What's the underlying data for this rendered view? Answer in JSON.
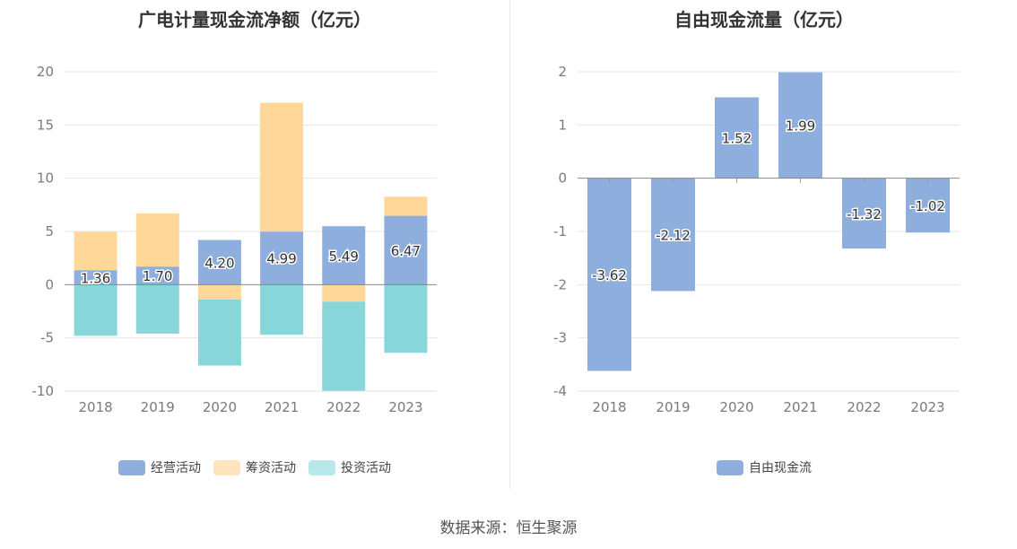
{
  "chart_data": [
    {
      "type": "bar",
      "stacked": true,
      "title": "广电计量现金流净额（亿元）",
      "categories": [
        "2018",
        "2019",
        "2020",
        "2021",
        "2022",
        "2023"
      ],
      "ylim": [
        -10,
        20
      ],
      "yticks": [
        20,
        15,
        10,
        5,
        0,
        -5,
        -10
      ],
      "series": [
        {
          "name": "经营活动",
          "color": "#8eaedd",
          "values": [
            1.36,
            1.7,
            4.2,
            4.99,
            5.49,
            6.47
          ],
          "labeled": true
        },
        {
          "name": "筹资活动",
          "color": "#ffd899",
          "values": [
            3.6,
            5.0,
            -1.4,
            12.1,
            -1.6,
            1.8
          ]
        },
        {
          "name": "投资活动",
          "color": "#88d6da",
          "values": [
            -4.8,
            -4.6,
            -6.2,
            -4.7,
            -8.4,
            -6.4
          ]
        }
      ],
      "legend": [
        {
          "label": "经营活动",
          "color": "#8eaedd"
        },
        {
          "label": "筹资活动",
          "color": "#ffe4bd"
        },
        {
          "label": "投资活动",
          "color": "#b9e8ea"
        }
      ]
    },
    {
      "type": "bar",
      "title": "自由现金流量（亿元）",
      "categories": [
        "2018",
        "2019",
        "2020",
        "2021",
        "2022",
        "2023"
      ],
      "ylim": [
        -4,
        2
      ],
      "yticks": [
        2,
        1,
        0,
        -1,
        -2,
        -3,
        -4
      ],
      "series": [
        {
          "name": "自由现金流",
          "color": "#8eaedd",
          "values": [
            -3.62,
            -2.12,
            1.52,
            1.99,
            -1.32,
            -1.02
          ],
          "labeled": true
        }
      ],
      "legend": [
        {
          "label": "自由现金流",
          "color": "#8eaedd"
        }
      ]
    }
  ],
  "footer": {
    "source": "数据来源：恒生聚源"
  }
}
